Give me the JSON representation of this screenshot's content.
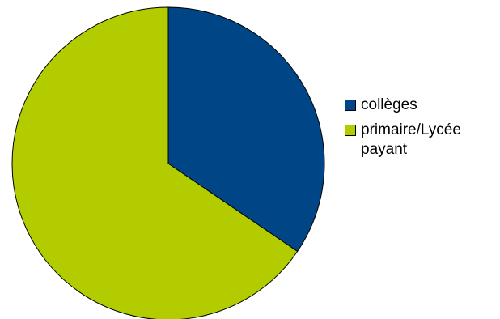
{
  "chart_data": {
    "type": "pie",
    "title": "",
    "slices": [
      {
        "label": "collèges",
        "value": 34.5,
        "color": "#004586"
      },
      {
        "label": "primaire/Lycée payant",
        "value": 65.5,
        "color": "#B3CC00"
      }
    ],
    "start_angle_deg": 0,
    "direction": "clockwise",
    "legend": "right"
  }
}
